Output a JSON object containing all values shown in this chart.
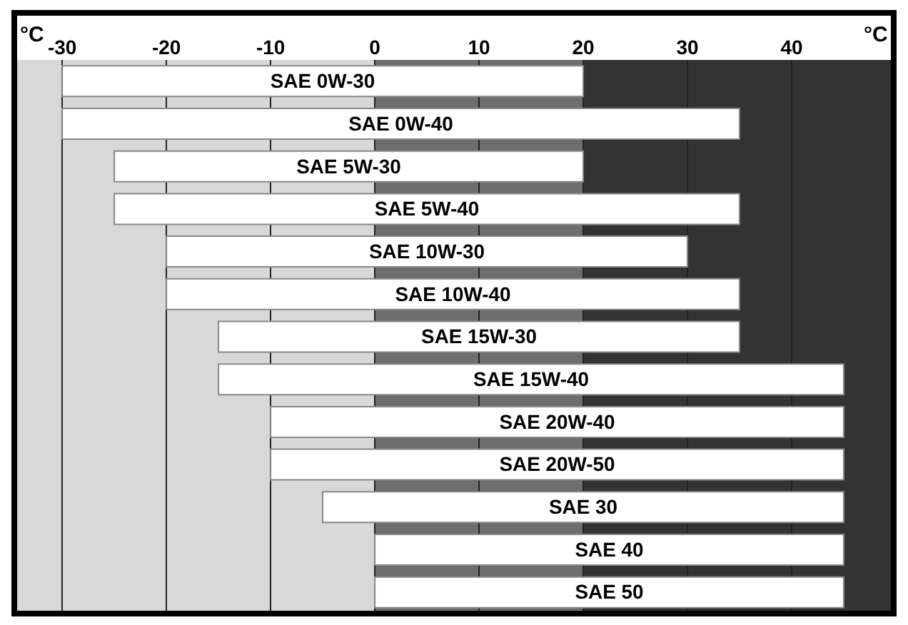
{
  "chart_data": {
    "type": "bar",
    "orientation": "horizontal",
    "categories": [
      "SAE 0W-30",
      "SAE 0W-40",
      "SAE 5W-30",
      "SAE 5W-40",
      "SAE 10W-30",
      "SAE 10W-40",
      "SAE 15W-30",
      "SAE 15W-40",
      "SAE 20W-40",
      "SAE 20W-50",
      "SAE 30",
      "SAE 40",
      "SAE 50"
    ],
    "base": [
      -30,
      -30,
      -25,
      -25,
      -20,
      -20,
      -15,
      -15,
      -10,
      -10,
      -5,
      0,
      0
    ],
    "values": [
      50,
      65,
      45,
      60,
      50,
      55,
      50,
      60,
      55,
      55,
      50,
      45,
      45
    ],
    "color": "#ffffff",
    "xlim": [
      -34.6,
      49.8
    ],
    "xticks": [
      -30,
      -20,
      -10,
      0,
      10,
      20,
      30,
      40
    ],
    "tick_labels": "x",
    "grid": "x",
    "bands": [
      {
        "axis": "x",
        "from": 0,
        "to": 20,
        "color": "#6e6e6e"
      },
      {
        "axis": "x",
        "from": 20,
        "to": 49.8,
        "color": "#333333"
      }
    ],
    "annotations": [
      "°C",
      "°C"
    ]
  }
}
